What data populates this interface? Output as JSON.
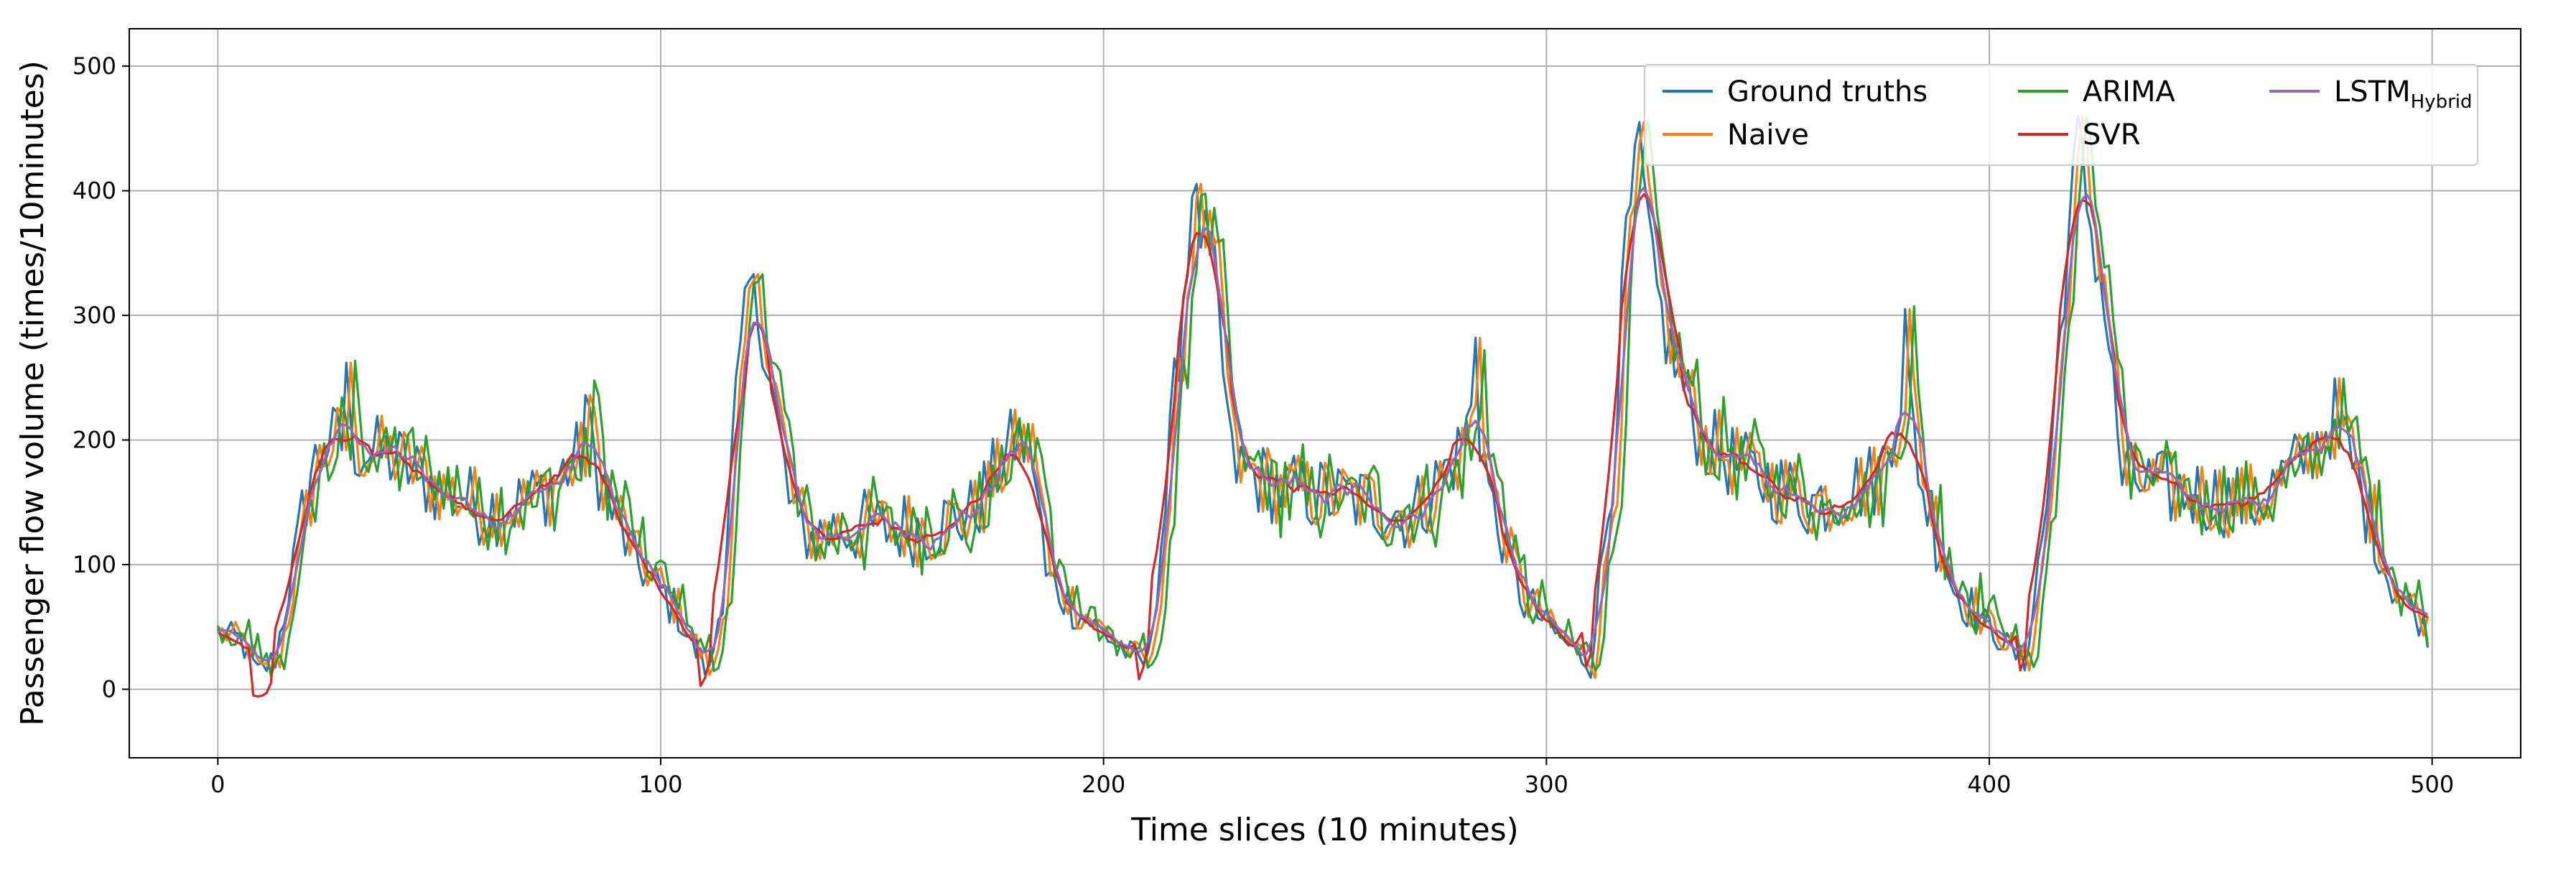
{
  "chart_data": {
    "type": "line",
    "title": "",
    "xlabel": "Time slices (10 minutes)",
    "ylabel": "Passenger flow volume (times/10minutes)",
    "xlim": [
      -20,
      520
    ],
    "ylim": [
      -55,
      530
    ],
    "x_ticks": [
      0,
      100,
      200,
      300,
      400,
      500
    ],
    "y_ticks": [
      0,
      100,
      200,
      300,
      400,
      500
    ],
    "grid": true,
    "legend_position": "top-right",
    "legend_columns": 3,
    "x_start": 0,
    "x_step": 1,
    "series": [
      {
        "name": "Ground truths",
        "legend_sub": "",
        "color": "#1f77b4",
        "role": "ground_truth"
      },
      {
        "name": "Naive",
        "legend_sub": "",
        "color": "#ff7f0e",
        "role": "naive",
        "lag": 1
      },
      {
        "name": "ARIMA",
        "legend_sub": "",
        "color": "#2ca02c",
        "role": "arima",
        "lag": 2,
        "noise": 12
      },
      {
        "name": "SVR",
        "legend_sub": "",
        "color": "#d62728",
        "role": "svr",
        "smooth": 5
      },
      {
        "name": "LSTM",
        "legend_sub": "Hybrid",
        "color": "#9467bd",
        "role": "lstm",
        "smooth": 3
      }
    ],
    "baseline_shape": [
      [
        0,
        45
      ],
      [
        5,
        40
      ],
      [
        9,
        12
      ],
      [
        13,
        25
      ],
      [
        17,
        100
      ],
      [
        21,
        175
      ],
      [
        25,
        200
      ],
      [
        30,
        195
      ],
      [
        40,
        185
      ],
      [
        50,
        160
      ],
      [
        60,
        145
      ],
      [
        70,
        150
      ],
      [
        80,
        180
      ],
      [
        84,
        200
      ],
      [
        88,
        150
      ],
      [
        95,
        100
      ],
      [
        102,
        70
      ],
      [
        108,
        30
      ],
      [
        111,
        12
      ],
      [
        114,
        80
      ],
      [
        117,
        230
      ],
      [
        120,
        320
      ],
      [
        123,
        290
      ],
      [
        126,
        220
      ],
      [
        129,
        150
      ],
      [
        133,
        120
      ],
      [
        140,
        130
      ],
      [
        160,
        130
      ],
      [
        170,
        140
      ],
      [
        180,
        200
      ],
      [
        184,
        190
      ],
      [
        187,
        90
      ],
      [
        195,
        60
      ],
      [
        205,
        30
      ],
      [
        210,
        20
      ],
      [
        214,
        150
      ],
      [
        218,
        320
      ],
      [
        221,
        380
      ],
      [
        225,
        330
      ],
      [
        229,
        180
      ],
      [
        240,
        160
      ],
      [
        260,
        150
      ],
      [
        270,
        140
      ],
      [
        280,
        190
      ],
      [
        284,
        230
      ],
      [
        288,
        140
      ],
      [
        295,
        70
      ],
      [
        305,
        35
      ],
      [
        310,
        20
      ],
      [
        315,
        180
      ],
      [
        318,
        360
      ],
      [
        321,
        430
      ],
      [
        324,
        330
      ],
      [
        328,
        270
      ],
      [
        335,
        200
      ],
      [
        345,
        175
      ],
      [
        360,
        150
      ],
      [
        375,
        170
      ],
      [
        381,
        250
      ],
      [
        385,
        160
      ],
      [
        392,
        80
      ],
      [
        400,
        50
      ],
      [
        408,
        20
      ],
      [
        413,
        150
      ],
      [
        417,
        330
      ],
      [
        420,
        440
      ],
      [
        423,
        370
      ],
      [
        426,
        310
      ],
      [
        430,
        170
      ],
      [
        440,
        160
      ],
      [
        460,
        150
      ],
      [
        470,
        180
      ],
      [
        478,
        220
      ],
      [
        483,
        170
      ],
      [
        490,
        90
      ],
      [
        499,
        45
      ]
    ],
    "ground_truth_samples": [
      {
        "x": 29,
        "y": 262
      },
      {
        "x": 83,
        "y": 236
      },
      {
        "x": 120,
        "y": 328
      },
      {
        "x": 220,
        "y": 395
      },
      {
        "x": 284,
        "y": 282
      },
      {
        "x": 321,
        "y": 455
      },
      {
        "x": 381,
        "y": 305
      },
      {
        "x": 420,
        "y": 460
      }
    ]
  }
}
